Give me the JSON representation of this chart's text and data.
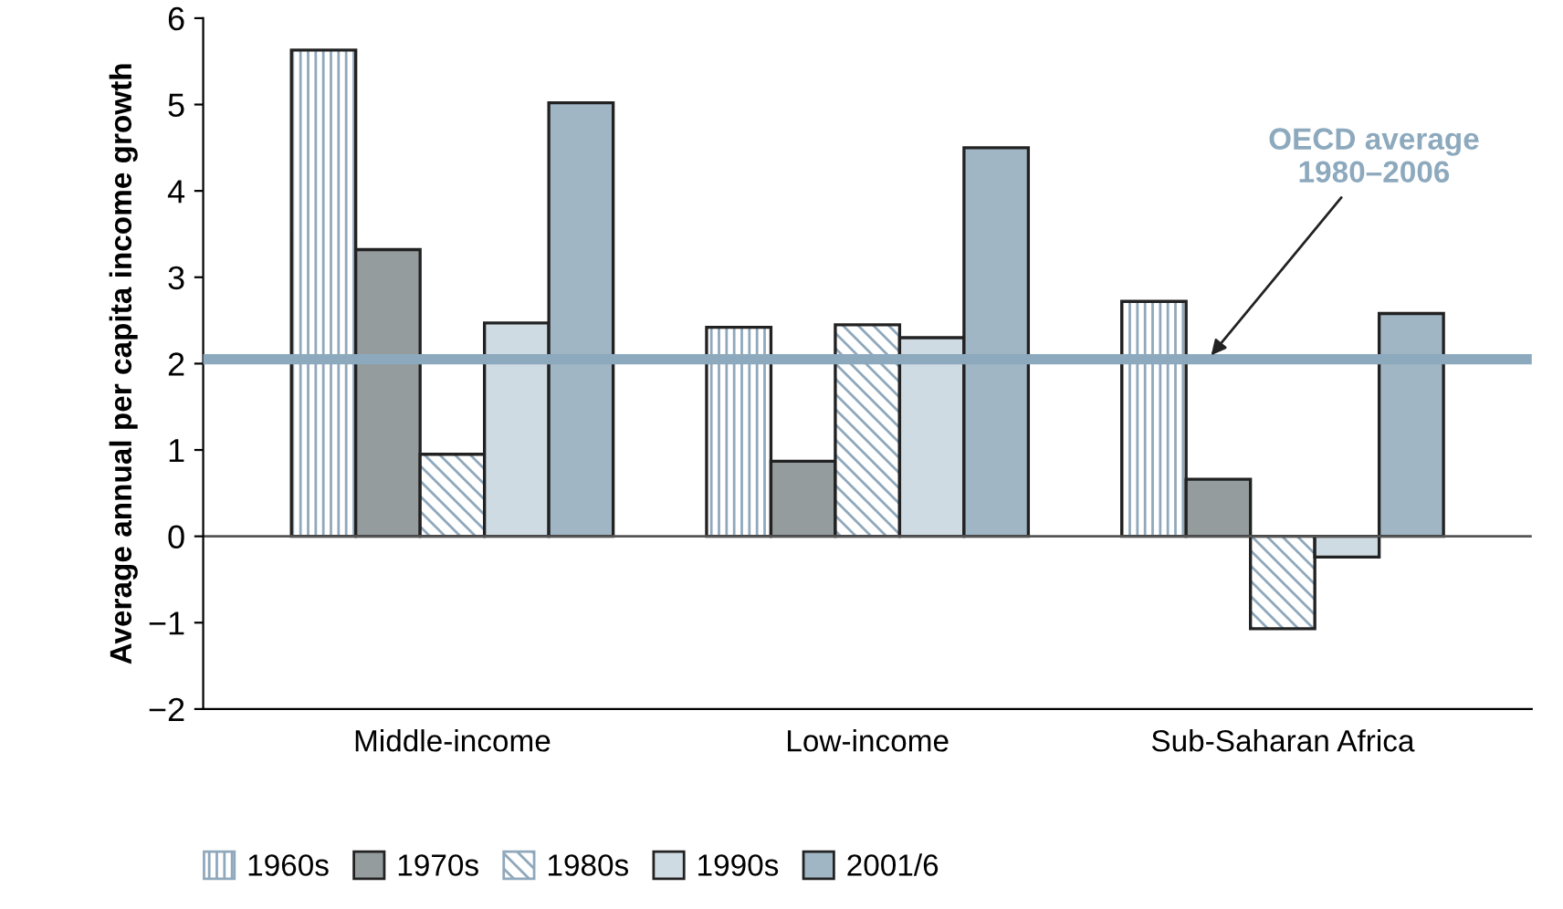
{
  "chart_data": {
    "type": "bar",
    "ylabel": "Average annual per capita income growth",
    "categories": [
      "Middle-income",
      "Low-income",
      "Sub-Saharan Africa"
    ],
    "series": [
      {
        "name": "1960s",
        "color": "#8fa8bc",
        "values": [
          5.63,
          2.42,
          2.72
        ]
      },
      {
        "name": "1970s",
        "color": "#959c9e",
        "values": [
          3.32,
          0.87,
          0.66
        ]
      },
      {
        "name": "1980s",
        "color": "#8fa8bc",
        "values": [
          0.95,
          2.45,
          -1.07
        ]
      },
      {
        "name": "1990s",
        "color": "#cfdbe3",
        "values": [
          2.47,
          2.3,
          -0.24
        ]
      },
      {
        "name": "2001/6",
        "color": "#a1b6c5",
        "values": [
          5.02,
          4.5,
          2.58
        ]
      }
    ],
    "ylim": [
      -2,
      6
    ],
    "yticks": [
      {
        "value": -2,
        "label": "−2"
      },
      {
        "value": -1,
        "label": "−1"
      },
      0,
      1,
      2,
      3,
      4,
      5,
      6
    ],
    "ref_lines": [
      {
        "axis": "y",
        "value": 2.05,
        "label": "OECD average\n1980–2006",
        "color": "#8da9bd"
      }
    ],
    "legend": "bottom"
  }
}
